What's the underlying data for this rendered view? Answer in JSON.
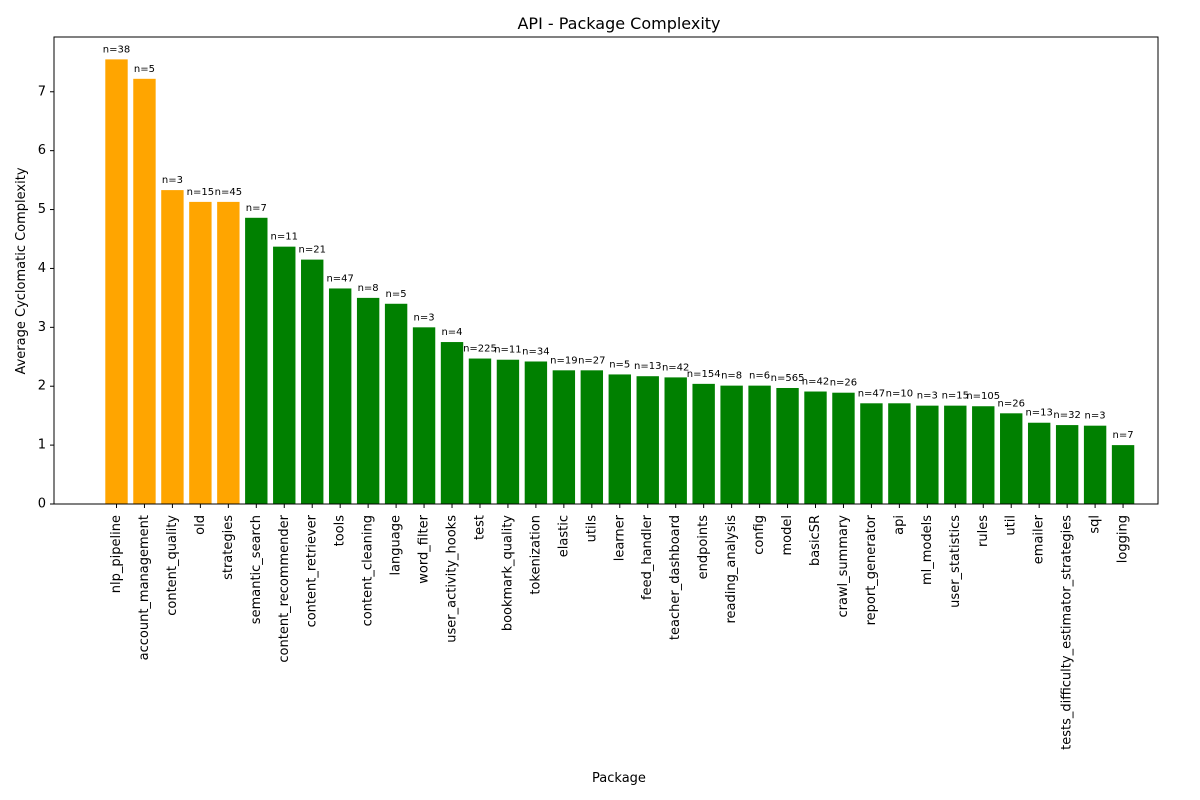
{
  "chart_data": {
    "type": "bar",
    "title": "API - Package Complexity",
    "xlabel": "Package",
    "ylabel": "Average Cyclomatic Complexity",
    "ylim": [
      0,
      7.93
    ],
    "yticks": [
      0,
      1,
      2,
      3,
      4,
      5,
      6,
      7
    ],
    "grid": false,
    "colors": {
      "high": "#FFA500",
      "normal": "#008000"
    },
    "categories": [
      "nlp_pipeline",
      "account_management",
      "content_quality",
      "old",
      "strategies",
      "semantic_search",
      "content_recommender",
      "content_retriever",
      "tools",
      "content_cleaning",
      "language",
      "word_filter",
      "user_activity_hooks",
      "test",
      "bookmark_quality",
      "tokenization",
      "elastic",
      "utils",
      "learner",
      "feed_handler",
      "teacher_dashboard",
      "endpoints",
      "reading_analysis",
      "config",
      "model",
      "basicSR",
      "crawl_summary",
      "report_generator",
      "api",
      "ml_models",
      "user_statistics",
      "rules",
      "util",
      "emailer",
      "tests_difficulty_estimator_strategies",
      "sql",
      "logging"
    ],
    "values": [
      7.55,
      7.22,
      5.33,
      5.13,
      5.13,
      4.86,
      4.37,
      4.15,
      3.66,
      3.5,
      3.4,
      3.0,
      2.75,
      2.47,
      2.45,
      2.42,
      2.27,
      2.27,
      2.2,
      2.17,
      2.15,
      2.04,
      2.01,
      2.01,
      1.97,
      1.91,
      1.89,
      1.71,
      1.71,
      1.67,
      1.67,
      1.66,
      1.54,
      1.38,
      1.34,
      1.33,
      1.0
    ],
    "counts": [
      "n=38",
      "n=5",
      "n=3",
      "n=15",
      "n=45",
      "n=7",
      "n=11",
      "n=21",
      "n=47",
      "n=8",
      "n=5",
      "n=3",
      "n=4",
      "n=225",
      "n=11",
      "n=34",
      "n=19",
      "n=27",
      "n=5",
      "n=13",
      "n=42",
      "n=154",
      "n=8",
      "n=6",
      "n=565",
      "n=42",
      "n=26",
      "n=47",
      "n=10",
      "n=3",
      "n=15",
      "n=105",
      "n=26",
      "n=13",
      "n=32",
      "n=3",
      "n=7"
    ],
    "highlight": [
      true,
      true,
      true,
      true,
      true,
      false,
      false,
      false,
      false,
      false,
      false,
      false,
      false,
      false,
      false,
      false,
      false,
      false,
      false,
      false,
      false,
      false,
      false,
      false,
      false,
      false,
      false,
      false,
      false,
      false,
      false,
      false,
      false,
      false,
      false,
      false,
      false
    ]
  }
}
